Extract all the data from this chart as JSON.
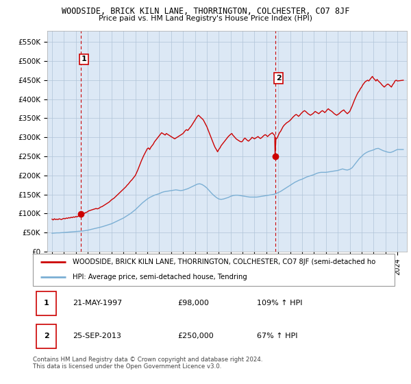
{
  "title": "WOODSIDE, BRICK KILN LANE, THORRINGTON, COLCHESTER, CO7 8JF",
  "subtitle": "Price paid vs. HM Land Registry's House Price Index (HPI)",
  "ylim": [
    0,
    580000
  ],
  "yticks": [
    0,
    50000,
    100000,
    150000,
    200000,
    250000,
    300000,
    350000,
    400000,
    450000,
    500000,
    550000
  ],
  "ytick_labels": [
    "£0",
    "£50K",
    "£100K",
    "£150K",
    "£200K",
    "£250K",
    "£300K",
    "£350K",
    "£400K",
    "£450K",
    "£500K",
    "£550K"
  ],
  "sale1_date": 1997.39,
  "sale1_price": 98000,
  "sale1_label": "1",
  "sale2_date": 2013.73,
  "sale2_price": 250000,
  "sale2_label": "2",
  "red_line_color": "#cc0000",
  "blue_line_color": "#7bafd4",
  "chart_bg_color": "#dce8f5",
  "point_color": "#cc0000",
  "vline_color": "#cc0000",
  "grid_color": "#b0c4d8",
  "background_color": "#ffffff",
  "legend_border_color": "#999999",
  "legend_label_red": "WOODSIDE, BRICK KILN LANE, THORRINGTON, COLCHESTER, CO7 8JF (semi-detached ho",
  "legend_label_blue": "HPI: Average price, semi-detached house, Tendring",
  "table_row1": [
    "1",
    "21-MAY-1997",
    "£98,000",
    "109% ↑ HPI"
  ],
  "table_row2": [
    "2",
    "25-SEP-2013",
    "£250,000",
    "67% ↑ HPI"
  ],
  "footnote": "Contains HM Land Registry data © Crown copyright and database right 2024.\nThis data is licensed under the Open Government Licence v3.0.",
  "xmin": 1994.6,
  "xmax": 2024.8,
  "red_hpi_data": [
    [
      1995.0,
      85000
    ],
    [
      1995.1,
      83000
    ],
    [
      1995.2,
      86000
    ],
    [
      1995.3,
      84000
    ],
    [
      1995.4,
      85000
    ],
    [
      1995.5,
      84000
    ],
    [
      1995.6,
      86000
    ],
    [
      1995.7,
      85000
    ],
    [
      1995.8,
      84000
    ],
    [
      1995.9,
      86000
    ],
    [
      1996.0,
      87000
    ],
    [
      1996.1,
      86000
    ],
    [
      1996.2,
      88000
    ],
    [
      1996.3,
      87000
    ],
    [
      1996.4,
      89000
    ],
    [
      1996.5,
      88000
    ],
    [
      1996.6,
      90000
    ],
    [
      1996.7,
      89000
    ],
    [
      1996.8,
      91000
    ],
    [
      1996.9,
      90000
    ],
    [
      1997.0,
      92000
    ],
    [
      1997.1,
      91000
    ],
    [
      1997.2,
      93000
    ],
    [
      1997.3,
      93000
    ],
    [
      1997.39,
      98000
    ],
    [
      1997.5,
      97000
    ],
    [
      1997.6,
      99000
    ],
    [
      1997.7,
      100000
    ],
    [
      1997.8,
      102000
    ],
    [
      1997.9,
      103000
    ],
    [
      1998.0,
      105000
    ],
    [
      1998.1,
      107000
    ],
    [
      1998.2,
      108000
    ],
    [
      1998.3,
      109000
    ],
    [
      1998.4,
      110000
    ],
    [
      1998.5,
      111000
    ],
    [
      1998.6,
      112000
    ],
    [
      1998.7,
      113000
    ],
    [
      1998.8,
      112000
    ],
    [
      1998.9,
      113000
    ],
    [
      1999.0,
      115000
    ],
    [
      1999.1,
      117000
    ],
    [
      1999.2,
      118000
    ],
    [
      1999.3,
      120000
    ],
    [
      1999.4,
      122000
    ],
    [
      1999.5,
      124000
    ],
    [
      1999.6,
      126000
    ],
    [
      1999.7,
      128000
    ],
    [
      1999.8,
      130000
    ],
    [
      1999.9,
      133000
    ],
    [
      2000.0,
      136000
    ],
    [
      2000.1,
      138000
    ],
    [
      2000.2,
      140000
    ],
    [
      2000.3,
      143000
    ],
    [
      2000.4,
      146000
    ],
    [
      2000.5,
      149000
    ],
    [
      2000.6,
      152000
    ],
    [
      2000.7,
      155000
    ],
    [
      2000.8,
      158000
    ],
    [
      2000.9,
      161000
    ],
    [
      2001.0,
      164000
    ],
    [
      2001.1,
      167000
    ],
    [
      2001.2,
      170000
    ],
    [
      2001.3,
      174000
    ],
    [
      2001.4,
      177000
    ],
    [
      2001.5,
      181000
    ],
    [
      2001.6,
      185000
    ],
    [
      2001.7,
      188000
    ],
    [
      2001.8,
      192000
    ],
    [
      2001.9,
      196000
    ],
    [
      2002.0,
      200000
    ],
    [
      2002.1,
      207000
    ],
    [
      2002.2,
      214000
    ],
    [
      2002.3,
      222000
    ],
    [
      2002.4,
      230000
    ],
    [
      2002.5,
      238000
    ],
    [
      2002.6,
      245000
    ],
    [
      2002.7,
      252000
    ],
    [
      2002.8,
      258000
    ],
    [
      2002.9,
      264000
    ],
    [
      2003.0,
      270000
    ],
    [
      2003.1,
      272000
    ],
    [
      2003.2,
      268000
    ],
    [
      2003.3,
      274000
    ],
    [
      2003.4,
      278000
    ],
    [
      2003.5,
      282000
    ],
    [
      2003.6,
      288000
    ],
    [
      2003.7,
      292000
    ],
    [
      2003.8,
      296000
    ],
    [
      2003.9,
      300000
    ],
    [
      2004.0,
      304000
    ],
    [
      2004.1,
      308000
    ],
    [
      2004.2,
      312000
    ],
    [
      2004.3,
      310000
    ],
    [
      2004.4,
      308000
    ],
    [
      2004.5,
      306000
    ],
    [
      2004.6,
      310000
    ],
    [
      2004.7,
      308000
    ],
    [
      2004.8,
      306000
    ],
    [
      2004.9,
      304000
    ],
    [
      2005.0,
      302000
    ],
    [
      2005.1,
      300000
    ],
    [
      2005.2,
      298000
    ],
    [
      2005.3,
      296000
    ],
    [
      2005.4,
      298000
    ],
    [
      2005.5,
      300000
    ],
    [
      2005.6,
      302000
    ],
    [
      2005.7,
      304000
    ],
    [
      2005.8,
      306000
    ],
    [
      2005.9,
      308000
    ],
    [
      2006.0,
      310000
    ],
    [
      2006.1,
      314000
    ],
    [
      2006.2,
      318000
    ],
    [
      2006.3,
      320000
    ],
    [
      2006.4,
      318000
    ],
    [
      2006.5,
      322000
    ],
    [
      2006.6,
      326000
    ],
    [
      2006.7,
      330000
    ],
    [
      2006.8,
      335000
    ],
    [
      2006.9,
      340000
    ],
    [
      2007.0,
      345000
    ],
    [
      2007.1,
      350000
    ],
    [
      2007.2,
      355000
    ],
    [
      2007.3,
      358000
    ],
    [
      2007.4,
      355000
    ],
    [
      2007.5,
      352000
    ],
    [
      2007.6,
      349000
    ],
    [
      2007.7,
      346000
    ],
    [
      2007.8,
      340000
    ],
    [
      2007.9,
      334000
    ],
    [
      2008.0,
      328000
    ],
    [
      2008.1,
      320000
    ],
    [
      2008.2,
      312000
    ],
    [
      2008.3,
      304000
    ],
    [
      2008.4,
      296000
    ],
    [
      2008.5,
      288000
    ],
    [
      2008.6,
      280000
    ],
    [
      2008.7,
      273000
    ],
    [
      2008.8,
      268000
    ],
    [
      2008.9,
      262000
    ],
    [
      2009.0,
      268000
    ],
    [
      2009.1,
      272000
    ],
    [
      2009.2,
      278000
    ],
    [
      2009.3,
      282000
    ],
    [
      2009.4,
      286000
    ],
    [
      2009.5,
      290000
    ],
    [
      2009.6,
      294000
    ],
    [
      2009.7,
      298000
    ],
    [
      2009.8,
      302000
    ],
    [
      2009.9,
      305000
    ],
    [
      2010.0,
      308000
    ],
    [
      2010.1,
      310000
    ],
    [
      2010.2,
      305000
    ],
    [
      2010.3,
      302000
    ],
    [
      2010.4,
      298000
    ],
    [
      2010.5,
      295000
    ],
    [
      2010.6,
      293000
    ],
    [
      2010.7,
      291000
    ],
    [
      2010.8,
      289000
    ],
    [
      2010.9,
      288000
    ],
    [
      2011.0,
      290000
    ],
    [
      2011.1,
      295000
    ],
    [
      2011.2,
      298000
    ],
    [
      2011.3,
      295000
    ],
    [
      2011.4,
      292000
    ],
    [
      2011.5,
      290000
    ],
    [
      2011.6,
      293000
    ],
    [
      2011.7,
      296000
    ],
    [
      2011.8,
      300000
    ],
    [
      2011.9,
      298000
    ],
    [
      2012.0,
      296000
    ],
    [
      2012.1,
      298000
    ],
    [
      2012.2,
      300000
    ],
    [
      2012.3,
      302000
    ],
    [
      2012.4,
      299000
    ],
    [
      2012.5,
      297000
    ],
    [
      2012.6,
      299000
    ],
    [
      2012.7,
      302000
    ],
    [
      2012.8,
      305000
    ],
    [
      2012.9,
      307000
    ],
    [
      2013.0,
      305000
    ],
    [
      2013.1,
      302000
    ],
    [
      2013.2,
      305000
    ],
    [
      2013.3,
      308000
    ],
    [
      2013.4,
      310000
    ],
    [
      2013.5,
      312000
    ],
    [
      2013.6,
      308000
    ],
    [
      2013.7,
      305000
    ],
    [
      2013.73,
      250000
    ],
    [
      2013.8,
      295000
    ],
    [
      2013.9,
      298000
    ],
    [
      2014.0,
      305000
    ],
    [
      2014.1,
      312000
    ],
    [
      2014.2,
      316000
    ],
    [
      2014.3,
      322000
    ],
    [
      2014.4,
      328000
    ],
    [
      2014.5,
      332000
    ],
    [
      2014.6,
      335000
    ],
    [
      2014.7,
      338000
    ],
    [
      2014.8,
      340000
    ],
    [
      2014.9,
      342000
    ],
    [
      2015.0,
      345000
    ],
    [
      2015.1,
      348000
    ],
    [
      2015.2,
      352000
    ],
    [
      2015.3,
      355000
    ],
    [
      2015.4,
      358000
    ],
    [
      2015.5,
      360000
    ],
    [
      2015.6,
      358000
    ],
    [
      2015.7,
      355000
    ],
    [
      2015.8,
      358000
    ],
    [
      2015.9,
      362000
    ],
    [
      2016.0,
      365000
    ],
    [
      2016.1,
      368000
    ],
    [
      2016.2,
      370000
    ],
    [
      2016.3,
      368000
    ],
    [
      2016.4,
      365000
    ],
    [
      2016.5,
      362000
    ],
    [
      2016.6,
      360000
    ],
    [
      2016.7,
      358000
    ],
    [
      2016.8,
      360000
    ],
    [
      2016.9,
      362000
    ],
    [
      2017.0,
      365000
    ],
    [
      2017.1,
      368000
    ],
    [
      2017.2,
      366000
    ],
    [
      2017.3,
      364000
    ],
    [
      2017.4,
      362000
    ],
    [
      2017.5,
      365000
    ],
    [
      2017.6,
      368000
    ],
    [
      2017.7,
      370000
    ],
    [
      2017.8,
      368000
    ],
    [
      2017.9,
      365000
    ],
    [
      2018.0,
      368000
    ],
    [
      2018.1,
      372000
    ],
    [
      2018.2,
      375000
    ],
    [
      2018.3,
      372000
    ],
    [
      2018.4,
      370000
    ],
    [
      2018.5,
      368000
    ],
    [
      2018.6,
      365000
    ],
    [
      2018.7,
      362000
    ],
    [
      2018.8,
      360000
    ],
    [
      2018.9,
      358000
    ],
    [
      2019.0,
      360000
    ],
    [
      2019.1,
      362000
    ],
    [
      2019.2,
      365000
    ],
    [
      2019.3,
      368000
    ],
    [
      2019.4,
      370000
    ],
    [
      2019.5,
      372000
    ],
    [
      2019.6,
      368000
    ],
    [
      2019.7,
      365000
    ],
    [
      2019.8,
      362000
    ],
    [
      2019.9,
      365000
    ],
    [
      2020.0,
      368000
    ],
    [
      2020.1,
      375000
    ],
    [
      2020.2,
      382000
    ],
    [
      2020.3,
      390000
    ],
    [
      2020.4,
      398000
    ],
    [
      2020.5,
      405000
    ],
    [
      2020.6,
      412000
    ],
    [
      2020.7,
      418000
    ],
    [
      2020.8,
      422000
    ],
    [
      2020.9,
      428000
    ],
    [
      2021.0,
      432000
    ],
    [
      2021.1,
      438000
    ],
    [
      2021.2,
      442000
    ],
    [
      2021.3,
      446000
    ],
    [
      2021.4,
      448000
    ],
    [
      2021.5,
      450000
    ],
    [
      2021.6,
      448000
    ],
    [
      2021.7,
      452000
    ],
    [
      2021.8,
      456000
    ],
    [
      2021.9,
      460000
    ],
    [
      2022.0,
      455000
    ],
    [
      2022.1,
      452000
    ],
    [
      2022.2,
      448000
    ],
    [
      2022.3,
      452000
    ],
    [
      2022.4,
      448000
    ],
    [
      2022.5,
      445000
    ],
    [
      2022.6,
      442000
    ],
    [
      2022.7,
      438000
    ],
    [
      2022.8,
      435000
    ],
    [
      2022.9,
      432000
    ],
    [
      2023.0,
      435000
    ],
    [
      2023.1,
      438000
    ],
    [
      2023.2,
      440000
    ],
    [
      2023.3,
      438000
    ],
    [
      2023.4,
      435000
    ],
    [
      2023.5,
      432000
    ],
    [
      2023.6,
      438000
    ],
    [
      2023.7,
      442000
    ],
    [
      2023.8,
      448000
    ],
    [
      2023.9,
      450000
    ],
    [
      2024.0,
      448000
    ],
    [
      2024.5,
      450000
    ]
  ],
  "blue_hpi_data": [
    [
      1995.0,
      48000
    ],
    [
      1995.2,
      48500
    ],
    [
      1995.4,
      49000
    ],
    [
      1995.6,
      49000
    ],
    [
      1995.8,
      49500
    ],
    [
      1996.0,
      50000
    ],
    [
      1996.2,
      50500
    ],
    [
      1996.4,
      51000
    ],
    [
      1996.6,
      51500
    ],
    [
      1996.8,
      52000
    ],
    [
      1997.0,
      52500
    ],
    [
      1997.2,
      53000
    ],
    [
      1997.4,
      53500
    ],
    [
      1997.6,
      54000
    ],
    [
      1997.8,
      55000
    ],
    [
      1998.0,
      56000
    ],
    [
      1998.2,
      57500
    ],
    [
      1998.4,
      59000
    ],
    [
      1998.6,
      60500
    ],
    [
      1998.8,
      62000
    ],
    [
      1999.0,
      63500
    ],
    [
      1999.2,
      65000
    ],
    [
      1999.4,
      67000
    ],
    [
      1999.6,
      69000
    ],
    [
      1999.8,
      71000
    ],
    [
      2000.0,
      73000
    ],
    [
      2000.2,
      76000
    ],
    [
      2000.4,
      79000
    ],
    [
      2000.6,
      82000
    ],
    [
      2000.8,
      85000
    ],
    [
      2001.0,
      88000
    ],
    [
      2001.2,
      92000
    ],
    [
      2001.4,
      96000
    ],
    [
      2001.6,
      100000
    ],
    [
      2001.8,
      105000
    ],
    [
      2002.0,
      110000
    ],
    [
      2002.2,
      116000
    ],
    [
      2002.4,
      122000
    ],
    [
      2002.6,
      128000
    ],
    [
      2002.8,
      133000
    ],
    [
      2003.0,
      138000
    ],
    [
      2003.2,
      142000
    ],
    [
      2003.4,
      145000
    ],
    [
      2003.6,
      148000
    ],
    [
      2003.8,
      150000
    ],
    [
      2004.0,
      152000
    ],
    [
      2004.2,
      155000
    ],
    [
      2004.4,
      157000
    ],
    [
      2004.6,
      158000
    ],
    [
      2004.8,
      159000
    ],
    [
      2005.0,
      160000
    ],
    [
      2005.2,
      161000
    ],
    [
      2005.4,
      162000
    ],
    [
      2005.6,
      161000
    ],
    [
      2005.8,
      160000
    ],
    [
      2006.0,
      161000
    ],
    [
      2006.2,
      163000
    ],
    [
      2006.4,
      165000
    ],
    [
      2006.6,
      168000
    ],
    [
      2006.8,
      171000
    ],
    [
      2007.0,
      174000
    ],
    [
      2007.2,
      177000
    ],
    [
      2007.4,
      178000
    ],
    [
      2007.6,
      176000
    ],
    [
      2007.8,
      172000
    ],
    [
      2008.0,
      167000
    ],
    [
      2008.2,
      160000
    ],
    [
      2008.4,
      153000
    ],
    [
      2008.6,
      147000
    ],
    [
      2008.8,
      142000
    ],
    [
      2009.0,
      138000
    ],
    [
      2009.2,
      137000
    ],
    [
      2009.4,
      138000
    ],
    [
      2009.6,
      140000
    ],
    [
      2009.8,
      142000
    ],
    [
      2010.0,
      145000
    ],
    [
      2010.2,
      147000
    ],
    [
      2010.4,
      148000
    ],
    [
      2010.6,
      148000
    ],
    [
      2010.8,
      147000
    ],
    [
      2011.0,
      146000
    ],
    [
      2011.2,
      145000
    ],
    [
      2011.4,
      144000
    ],
    [
      2011.6,
      143000
    ],
    [
      2011.8,
      143000
    ],
    [
      2012.0,
      143000
    ],
    [
      2012.2,
      143000
    ],
    [
      2012.4,
      144000
    ],
    [
      2012.6,
      145000
    ],
    [
      2012.8,
      146000
    ],
    [
      2013.0,
      147000
    ],
    [
      2013.2,
      148000
    ],
    [
      2013.4,
      149000
    ],
    [
      2013.6,
      150000
    ],
    [
      2013.8,
      152000
    ],
    [
      2014.0,
      155000
    ],
    [
      2014.2,
      158000
    ],
    [
      2014.4,
      162000
    ],
    [
      2014.6,
      166000
    ],
    [
      2014.8,
      170000
    ],
    [
      2015.0,
      174000
    ],
    [
      2015.2,
      178000
    ],
    [
      2015.4,
      182000
    ],
    [
      2015.6,
      185000
    ],
    [
      2015.8,
      188000
    ],
    [
      2016.0,
      190000
    ],
    [
      2016.2,
      193000
    ],
    [
      2016.4,
      196000
    ],
    [
      2016.6,
      198000
    ],
    [
      2016.8,
      200000
    ],
    [
      2017.0,
      202000
    ],
    [
      2017.2,
      205000
    ],
    [
      2017.4,
      207000
    ],
    [
      2017.6,
      208000
    ],
    [
      2017.8,
      208000
    ],
    [
      2018.0,
      208000
    ],
    [
      2018.2,
      209000
    ],
    [
      2018.4,
      210000
    ],
    [
      2018.6,
      211000
    ],
    [
      2018.8,
      212000
    ],
    [
      2019.0,
      213000
    ],
    [
      2019.2,
      215000
    ],
    [
      2019.4,
      217000
    ],
    [
      2019.6,
      215000
    ],
    [
      2019.8,
      214000
    ],
    [
      2020.0,
      216000
    ],
    [
      2020.2,
      220000
    ],
    [
      2020.4,
      228000
    ],
    [
      2020.6,
      236000
    ],
    [
      2020.8,
      244000
    ],
    [
      2021.0,
      250000
    ],
    [
      2021.2,
      256000
    ],
    [
      2021.4,
      260000
    ],
    [
      2021.6,
      263000
    ],
    [
      2021.8,
      265000
    ],
    [
      2022.0,
      267000
    ],
    [
      2022.2,
      270000
    ],
    [
      2022.4,
      271000
    ],
    [
      2022.6,
      268000
    ],
    [
      2022.8,
      265000
    ],
    [
      2023.0,
      263000
    ],
    [
      2023.2,
      261000
    ],
    [
      2023.4,
      260000
    ],
    [
      2023.6,
      262000
    ],
    [
      2023.8,
      265000
    ],
    [
      2024.0,
      268000
    ],
    [
      2024.5,
      268000
    ]
  ]
}
